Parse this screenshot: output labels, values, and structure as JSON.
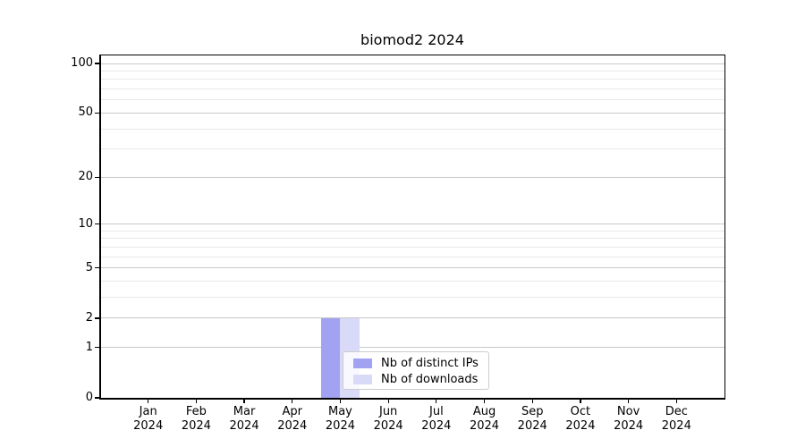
{
  "title": "biomod2 2024",
  "colors": {
    "background": "#ffffff",
    "axis": "#000000",
    "grid_major": "#c9c9c9",
    "grid_minor": "#e9e9e9",
    "legend_border": "#cccccc",
    "distinct_ips": "#a2a2f2",
    "downloads": "#d9d9f8"
  },
  "chart_data": {
    "type": "bar",
    "title": "biomod2 2024",
    "categories": [
      "Jan 2024",
      "Feb 2024",
      "Mar 2024",
      "Apr 2024",
      "May 2024",
      "Jun 2024",
      "Jul 2024",
      "Aug 2024",
      "Sep 2024",
      "Oct 2024",
      "Nov 2024",
      "Dec 2024"
    ],
    "series": [
      {
        "name": "Nb of distinct IPs",
        "color": "#a2a2f2",
        "values": [
          0,
          0,
          0,
          0,
          2,
          0,
          0,
          0,
          0,
          0,
          0,
          0
        ]
      },
      {
        "name": "Nb of downloads",
        "color": "#d9d9f8",
        "values": [
          0,
          0,
          0,
          0,
          2,
          0,
          0,
          0,
          0,
          0,
          0,
          0
        ]
      }
    ],
    "xlabel": "",
    "ylabel": "",
    "yscale": "log1p",
    "ylim": [
      0,
      112
    ],
    "yticks": [
      0,
      1,
      2,
      5,
      10,
      20,
      50,
      100
    ],
    "yticks_minor": [
      3,
      4,
      6,
      7,
      8,
      9,
      30,
      40,
      60,
      70,
      80,
      90
    ],
    "grid": "horizontal, major and minor",
    "legend_position": "inside lower-center"
  }
}
